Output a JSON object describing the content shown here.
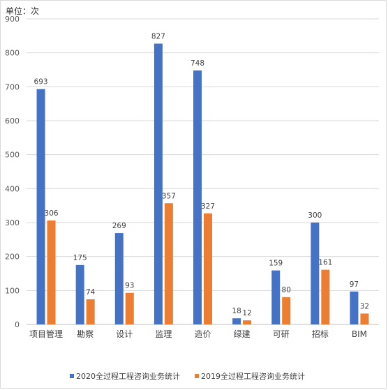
{
  "unit_label": "单位：次",
  "colors": {
    "series_2020": "#4472c4",
    "series_2019": "#ed7d31",
    "grid": "#d9d9d9",
    "axis": "#bfbfbf"
  },
  "chart_data": {
    "type": "bar",
    "title": "",
    "xlabel": "",
    "ylabel": "",
    "ylim": [
      0,
      900
    ],
    "yticks": [
      0,
      100,
      200,
      300,
      400,
      500,
      600,
      700,
      800,
      900
    ],
    "grid": true,
    "legend_position": "bottom",
    "categories": [
      "项目管理",
      "勘察",
      "设计",
      "监理",
      "造价",
      "绿建",
      "可研",
      "招标",
      "BIM"
    ],
    "series": [
      {
        "name": "2020全过程工程咨询业务统计",
        "color": "#4472c4",
        "values": [
          693,
          175,
          269,
          827,
          748,
          18,
          159,
          300,
          97
        ]
      },
      {
        "name": "2019全过程工程咨询业务统计",
        "color": "#ed7d31",
        "values": [
          306,
          74,
          93,
          357,
          327,
          12,
          80,
          161,
          32
        ]
      }
    ]
  }
}
